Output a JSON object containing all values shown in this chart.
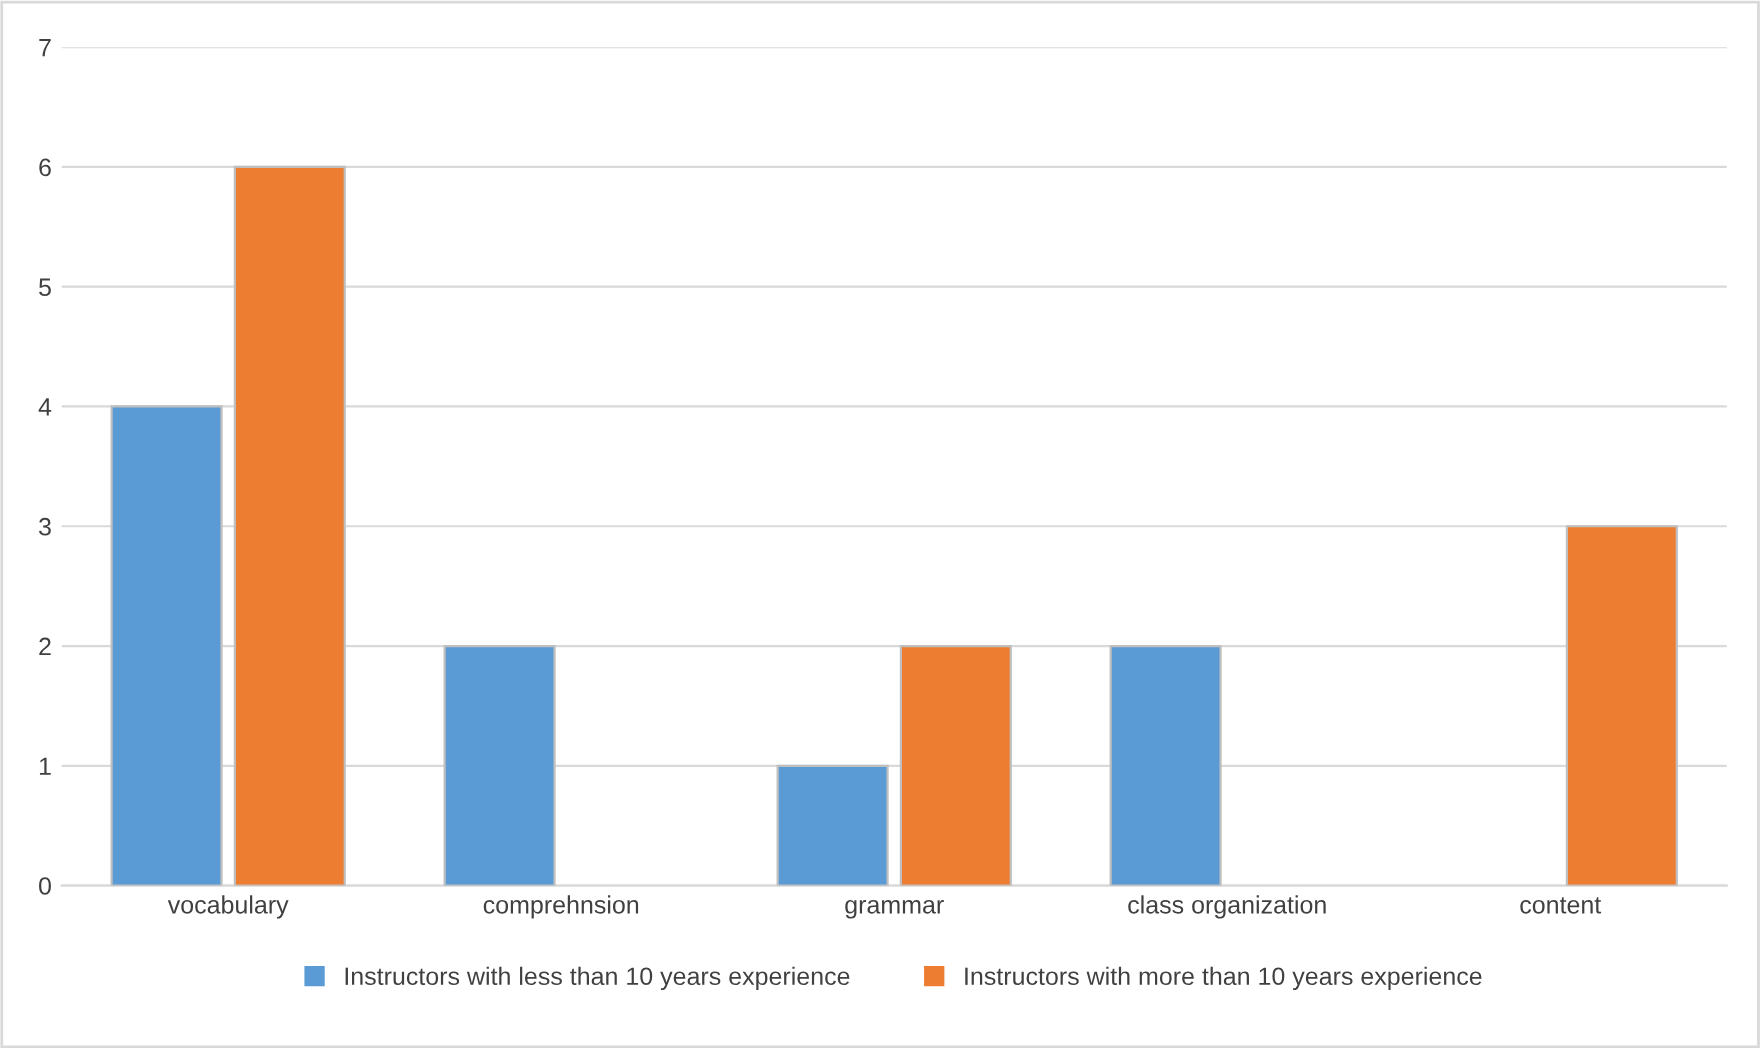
{
  "chart_data": {
    "type": "bar",
    "categories": [
      "vocabulary",
      "comprehnsion",
      "grammar",
      "class organization",
      "content"
    ],
    "series": [
      {
        "name": "Instructors with less than 10 years experience",
        "color": "#5b9bd5",
        "values": [
          4,
          2,
          1,
          2,
          null
        ]
      },
      {
        "name": "Instructors with more than 10 years experience",
        "color": "#ed7d31",
        "values": [
          6,
          null,
          2,
          null,
          3
        ]
      }
    ],
    "ylim": [
      0,
      7
    ],
    "yticks": [
      0,
      1,
      2,
      3,
      4,
      5,
      6,
      7
    ],
    "grid": "y",
    "legend": "bottom"
  }
}
